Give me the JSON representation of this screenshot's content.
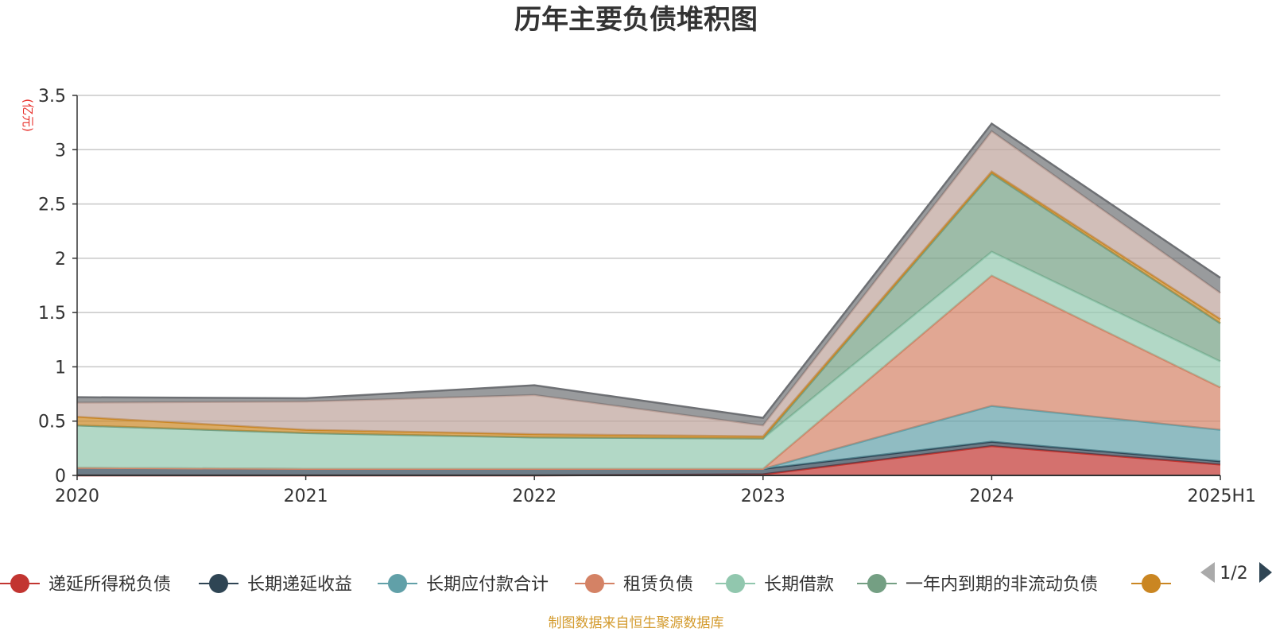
{
  "title": "历年主要负债堆积图",
  "unit_label": "(亿元)",
  "source_note": "制图数据来自恒生聚源数据库",
  "pager": {
    "text": "1/2"
  },
  "chart_data": {
    "type": "area",
    "stacked": true,
    "categories": [
      "2020",
      "2021",
      "2022",
      "2023",
      "2024",
      "2025H1"
    ],
    "ylim": [
      0,
      3.5
    ],
    "yticks": [
      0,
      0.5,
      1,
      1.5,
      2,
      2.5,
      3,
      3.5
    ],
    "grid": true,
    "legend_position": "bottom",
    "series": [
      {
        "name": "递延所得税负债",
        "color": "#c23531",
        "values": [
          0,
          0,
          0,
          0.01,
          0.27,
          0.1
        ]
      },
      {
        "name": "长期递延收益",
        "color": "#2f4554",
        "values": [
          0.07,
          0.06,
          0.06,
          0.05,
          0.04,
          0.03
        ]
      },
      {
        "name": "长期应付款合计",
        "color": "#61a0a8",
        "values": [
          0,
          0,
          0,
          0,
          0.33,
          0.29
        ]
      },
      {
        "name": "租赁负债",
        "color": "#d48265",
        "values": [
          0,
          0,
          0,
          0,
          1.2,
          0.39
        ]
      },
      {
        "name": "长期借款",
        "color": "#91c7ae",
        "values": [
          0.39,
          0.33,
          0.29,
          0.28,
          0.22,
          0.24
        ]
      },
      {
        "name": "一年内到期的非流动负债",
        "color": "#749f83",
        "values": [
          0,
          0,
          0,
          0,
          0.72,
          0.35
        ]
      },
      {
        "name": "",
        "color": "#ca8622",
        "values": [
          0.08,
          0.03,
          0.03,
          0.02,
          0.02,
          0.04
        ]
      },
      {
        "name": "",
        "color": "#bda29a",
        "values": [
          0.13,
          0.26,
          0.36,
          0.1,
          0.37,
          0.24
        ]
      },
      {
        "name": "",
        "color": "#6e7074",
        "values": [
          0.05,
          0.03,
          0.09,
          0.07,
          0.07,
          0.14
        ]
      }
    ]
  }
}
